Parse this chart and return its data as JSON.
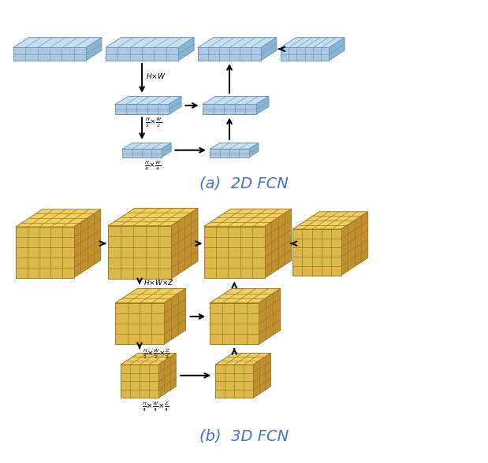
{
  "bg_color": "#ffffff",
  "blue_face": "#adc8e0",
  "blue_edge": "#6a9abf",
  "blue_top": "#c8dff0",
  "blue_side": "#8ab5d0",
  "yellow_face": "#ddb84a",
  "yellow_edge": "#a07820",
  "yellow_top": "#f0d060",
  "yellow_side": "#c09030",
  "label_2d": "(a)  2D FCN",
  "label_3d": "(b)  3D FCN",
  "label_color": "#4472c4",
  "arrow_color": "#000000",
  "text_color": "#000000"
}
